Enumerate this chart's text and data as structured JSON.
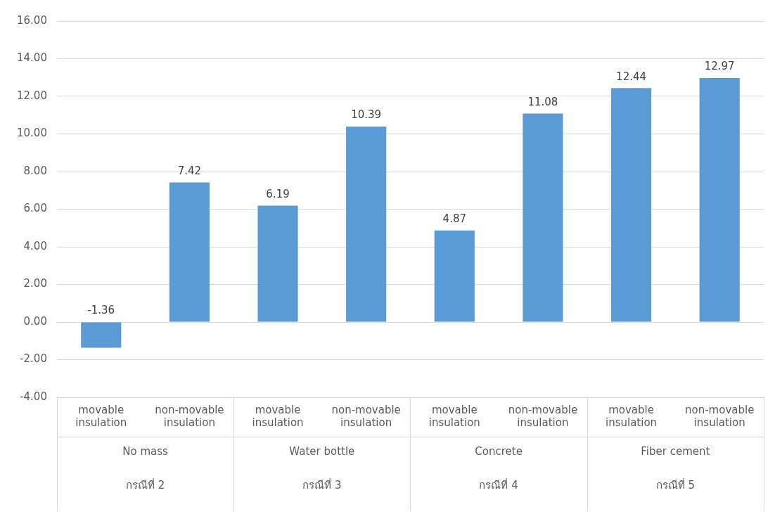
{
  "chart_data": {
    "type": "bar",
    "categories": [
      "movable insulation",
      "non-movable insulation",
      "movable insulation",
      "non-movable insulation",
      "movable insulation",
      "non-movable insulation",
      "movable insulation",
      "non-movable insulation"
    ],
    "values": [
      -1.36,
      7.42,
      6.19,
      10.39,
      4.87,
      11.08,
      12.44,
      12.97
    ],
    "color": "#5b9bd5",
    "ylim": [
      -4,
      16
    ],
    "yticks": [
      {
        "value": -4,
        "label": "-4.00"
      },
      {
        "value": -2,
        "label": "-2.00"
      },
      {
        "value": 0,
        "label": "0.00"
      },
      {
        "value": 2,
        "label": "2.00"
      },
      {
        "value": 4,
        "label": "4.00"
      },
      {
        "value": 6,
        "label": "6.00"
      },
      {
        "value": 8,
        "label": "8.00"
      },
      {
        "value": 10,
        "label": "10.00"
      },
      {
        "value": 12,
        "label": "12.00"
      },
      {
        "value": 14,
        "label": "14.00"
      },
      {
        "value": 16,
        "label": "16.00"
      }
    ],
    "grid": "y",
    "data_labels": true,
    "legend": false,
    "annotations": [
      "No mass",
      "Water bottle",
      "Concrete",
      "Fiber cement",
      "กรณีที่ 2",
      "กรณีที่ 3",
      "กรณีที่ 4",
      "กรณีที่ 5"
    ]
  }
}
